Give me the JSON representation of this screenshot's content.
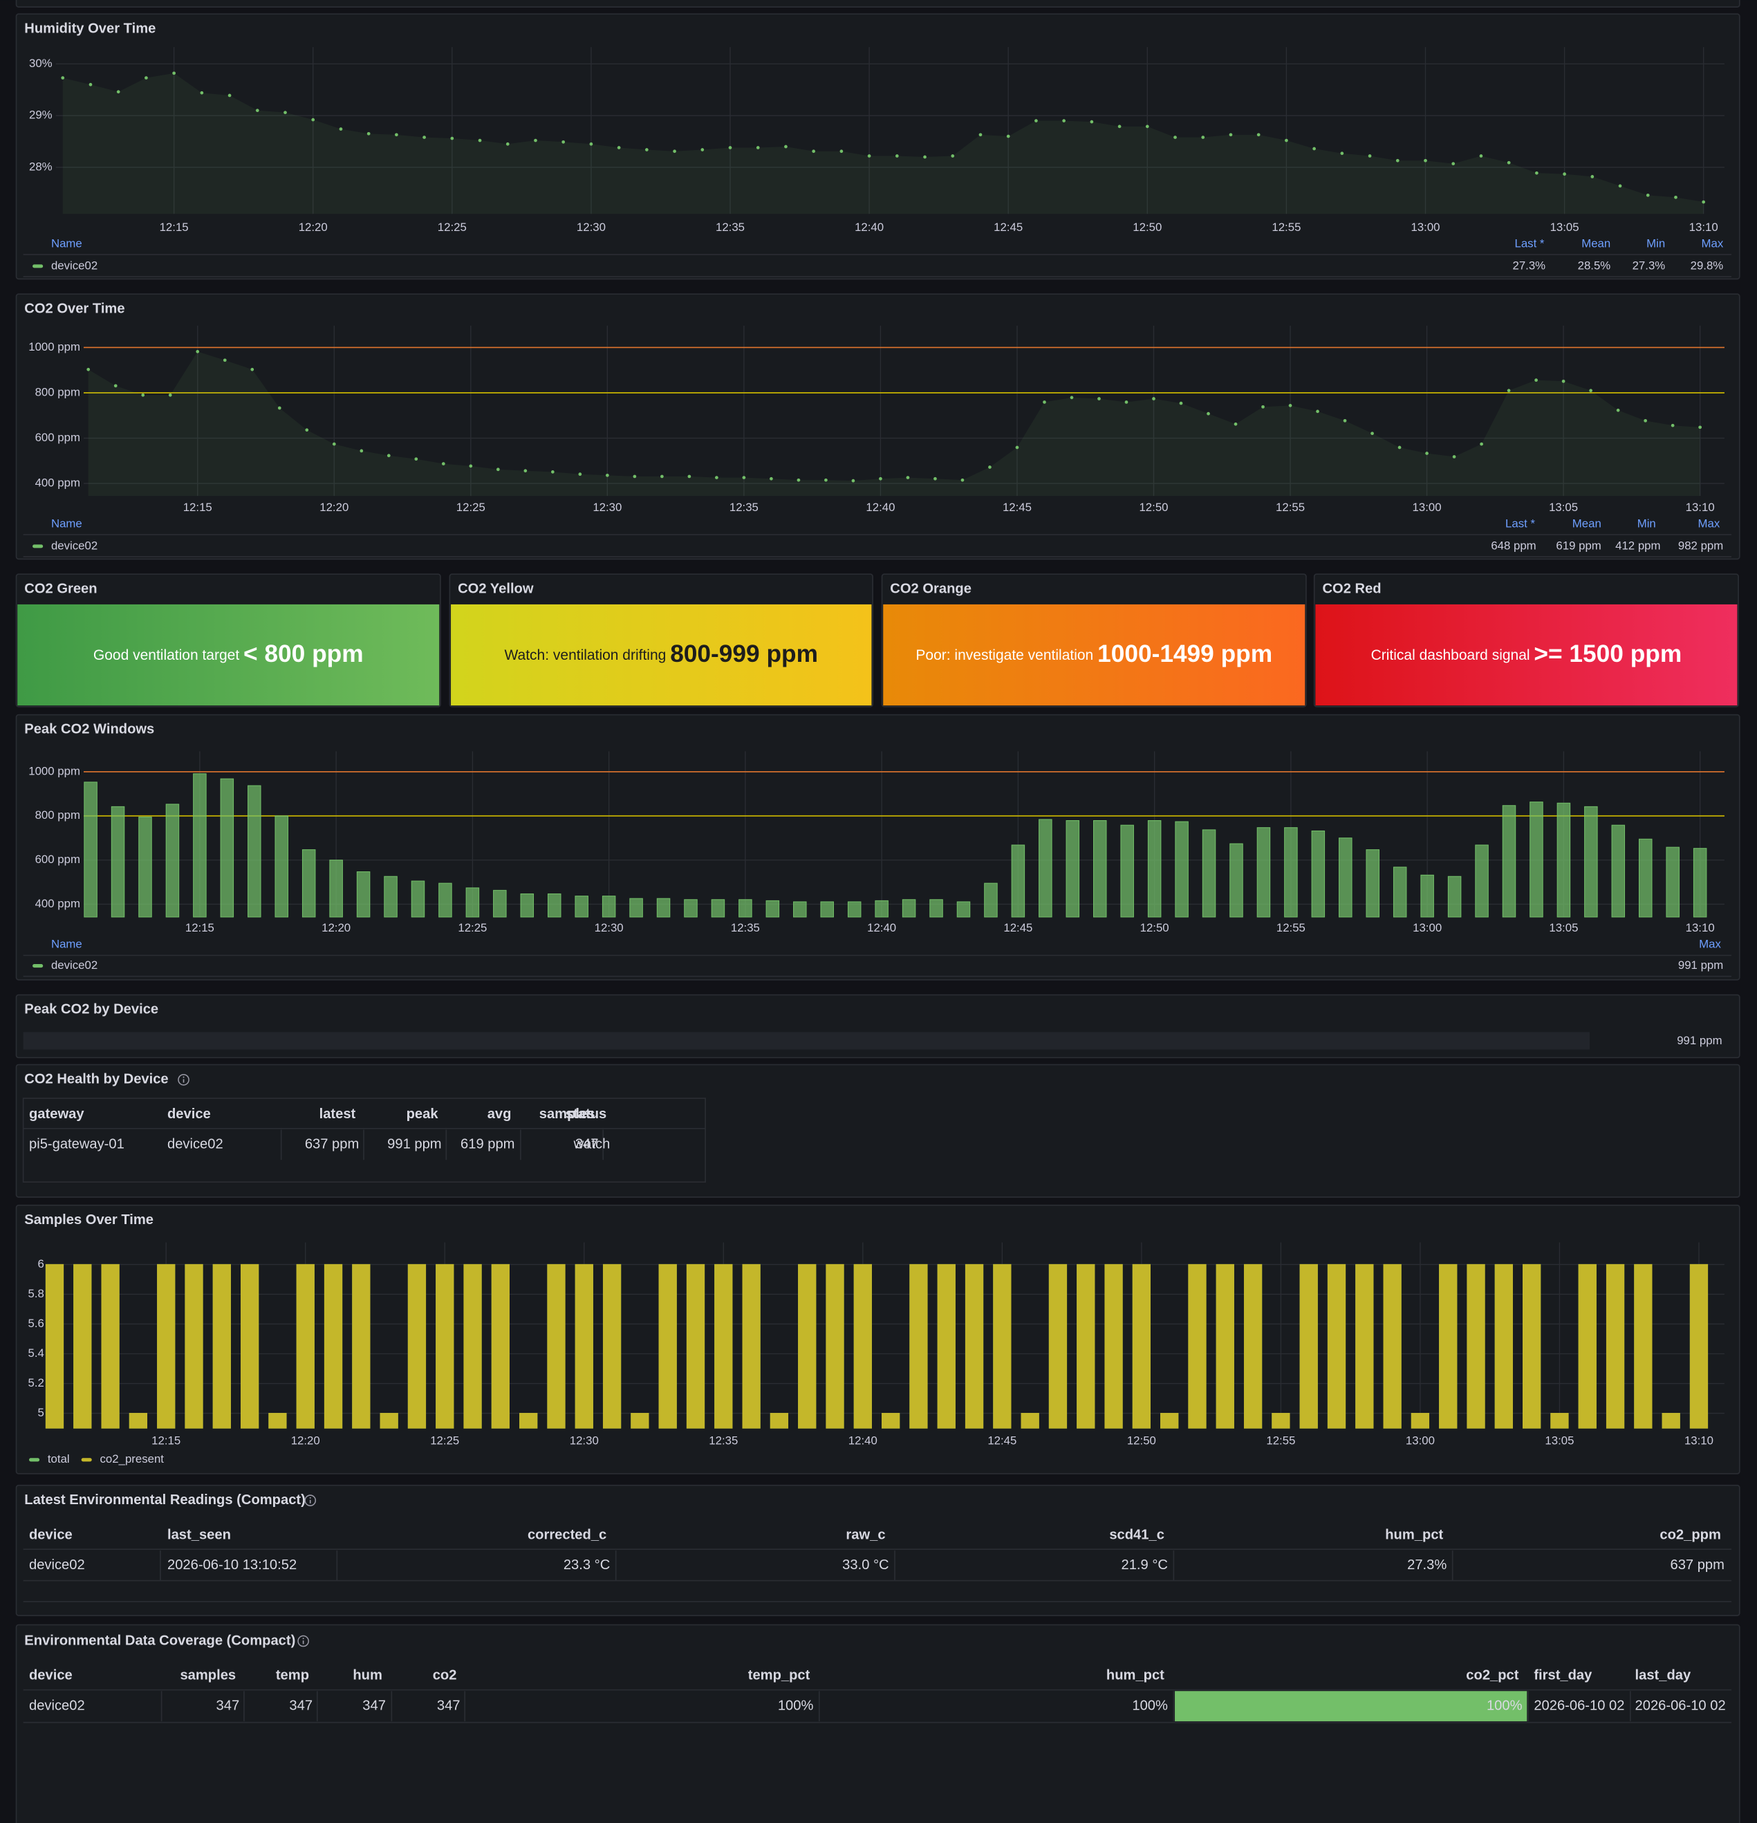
{
  "chart_data": [
    {
      "type": "line",
      "title": "Humidity Over Time",
      "x": [
        "12:11",
        "12:12",
        "12:13",
        "12:14",
        "12:15",
        "12:16",
        "12:17",
        "12:18",
        "12:19",
        "12:20",
        "12:21",
        "12:22",
        "12:23",
        "12:24",
        "12:25",
        "12:26",
        "12:27",
        "12:28",
        "12:29",
        "12:30",
        "12:31",
        "12:32",
        "12:33",
        "12:34",
        "12:35",
        "12:36",
        "12:37",
        "12:38",
        "12:39",
        "12:40",
        "12:41",
        "12:42",
        "12:43",
        "12:44",
        "12:45",
        "12:46",
        "12:47",
        "12:48",
        "12:49",
        "12:50",
        "12:51",
        "12:52",
        "12:53",
        "12:54",
        "12:55",
        "12:56",
        "12:57",
        "12:58",
        "12:59",
        "13:00",
        "13:01",
        "13:02",
        "13:03",
        "13:04",
        "13:05",
        "13:06",
        "13:07",
        "13:08",
        "13:09",
        "13:10"
      ],
      "series": [
        {
          "name": "device02",
          "color": "#73bf69",
          "values": [
            29.73,
            29.6,
            29.46,
            29.73,
            29.82,
            29.44,
            29.39,
            29.1,
            29.06,
            28.92,
            28.74,
            28.65,
            28.63,
            28.58,
            28.56,
            28.52,
            28.45,
            28.52,
            28.49,
            28.45,
            28.38,
            28.34,
            28.31,
            28.34,
            28.38,
            28.38,
            28.4,
            28.31,
            28.31,
            28.22,
            28.22,
            28.2,
            28.22,
            28.63,
            28.6,
            28.9,
            28.9,
            28.88,
            28.79,
            28.79,
            28.58,
            28.58,
            28.63,
            28.63,
            28.52,
            28.36,
            28.27,
            28.22,
            28.13,
            28.13,
            28.07,
            28.22,
            28.09,
            27.89,
            27.87,
            27.82,
            27.64,
            27.46,
            27.42,
            27.33
          ]
        }
      ],
      "ylim": [
        27.1,
        30.1
      ],
      "yticks": [
        {
          "value": 28,
          "label": "28%"
        },
        {
          "value": 29,
          "label": "29%"
        },
        {
          "value": 30,
          "label": "30%"
        }
      ],
      "xticks": [
        "12:15",
        "12:20",
        "12:25",
        "12:30",
        "12:35",
        "12:40",
        "12:45",
        "12:50",
        "12:55",
        "13:00",
        "13:05",
        "13:10"
      ],
      "grid": true,
      "legend": {
        "header": "Name",
        "stat_names": [
          "Last *",
          "Mean",
          "Min",
          "Max"
        ],
        "stat_values": [
          "27.3%",
          "28.5%",
          "27.3%",
          "29.8%"
        ]
      }
    },
    {
      "type": "line",
      "title": "CO2 Over Time",
      "x": [
        "12:11",
        "12:12",
        "12:13",
        "12:14",
        "12:15",
        "12:16",
        "12:17",
        "12:18",
        "12:19",
        "12:20",
        "12:21",
        "12:22",
        "12:23",
        "12:24",
        "12:25",
        "12:26",
        "12:27",
        "12:28",
        "12:29",
        "12:30",
        "12:31",
        "12:32",
        "12:33",
        "12:34",
        "12:35",
        "12:36",
        "12:37",
        "12:38",
        "12:39",
        "12:40",
        "12:41",
        "12:42",
        "12:43",
        "12:44",
        "12:45",
        "12:46",
        "12:47",
        "12:48",
        "12:49",
        "12:50",
        "12:51",
        "12:52",
        "12:53",
        "12:54",
        "12:55",
        "12:56",
        "12:57",
        "12:58",
        "12:59",
        "13:00",
        "13:01",
        "13:02",
        "13:03",
        "13:04",
        "13:05",
        "13:06",
        "13:07",
        "13:08",
        "13:09",
        "13:10"
      ],
      "series": [
        {
          "name": "device02",
          "color": "#73bf69",
          "values": [
            903,
            831,
            790,
            790,
            982,
            944,
            903,
            733,
            636,
            574,
            544,
            523,
            508,
            487,
            477,
            462,
            456,
            451,
            441,
            436,
            431,
            431,
            431,
            426,
            426,
            421,
            415,
            415,
            412,
            421,
            426,
            421,
            415,
            472,
            559,
            759,
            779,
            774,
            759,
            774,
            754,
            708,
            662,
            738,
            744,
            718,
            677,
            621,
            559,
            533,
            518,
            574,
            810,
            856,
            851,
            810,
            723,
            677,
            656,
            648
          ]
        }
      ],
      "ylim": [
        345,
        1045
      ],
      "yticks": [
        {
          "value": 400,
          "label": "400 ppm"
        },
        {
          "value": 600,
          "label": "600 ppm"
        },
        {
          "value": 800,
          "label": "800 ppm"
        },
        {
          "value": 1000,
          "label": "1000 ppm"
        }
      ],
      "xticks": [
        "12:15",
        "12:20",
        "12:25",
        "12:30",
        "12:35",
        "12:40",
        "12:45",
        "12:50",
        "12:55",
        "13:00",
        "13:05",
        "13:10"
      ],
      "grid": true,
      "thresholds": [
        {
          "value": 800,
          "color": "#c8b400"
        },
        {
          "value": 1000,
          "color": "#e0752d"
        }
      ],
      "legend": {
        "header": "Name",
        "stat_names": [
          "Last *",
          "Mean",
          "Min",
          "Max"
        ],
        "stat_values": [
          "648 ppm",
          "619 ppm",
          "412 ppm",
          "982 ppm"
        ]
      }
    },
    {
      "type": "bar",
      "title": "Peak CO2 Windows",
      "x": [
        "12:11",
        "12:12",
        "12:13",
        "12:14",
        "12:15",
        "12:16",
        "12:17",
        "12:18",
        "12:19",
        "12:20",
        "12:21",
        "12:22",
        "12:23",
        "12:24",
        "12:25",
        "12:26",
        "12:27",
        "12:28",
        "12:29",
        "12:30",
        "12:31",
        "12:32",
        "12:33",
        "12:34",
        "12:35",
        "12:36",
        "12:37",
        "12:38",
        "12:39",
        "12:40",
        "12:41",
        "12:42",
        "12:43",
        "12:44",
        "12:45",
        "12:46",
        "12:47",
        "12:48",
        "12:49",
        "12:50",
        "12:51",
        "12:52",
        "12:53",
        "12:54",
        "12:55",
        "12:56",
        "12:57",
        "12:58",
        "12:59",
        "13:00",
        "13:01",
        "13:02",
        "13:03",
        "13:04",
        "13:05",
        "13:06",
        "13:07",
        "13:08",
        "13:09",
        "13:10"
      ],
      "series": [
        {
          "name": "device02",
          "color": "#73bf69",
          "values": [
            953,
            842,
            795,
            853,
            991,
            968,
            937,
            800,
            647,
            600,
            547,
            526,
            505,
            495,
            474,
            463,
            447,
            447,
            437,
            437,
            426,
            426,
            421,
            421,
            421,
            416,
            411,
            411,
            411,
            416,
            421,
            421,
            411,
            495,
            668,
            784,
            779,
            779,
            758,
            779,
            774,
            737,
            674,
            747,
            747,
            732,
            700,
            647,
            568,
            532,
            526,
            668,
            847,
            863,
            858,
            842,
            758,
            695,
            658,
            653
          ]
        }
      ],
      "ylim": [
        342,
        1040
      ],
      "yticks": [
        {
          "value": 400,
          "label": "400 ppm"
        },
        {
          "value": 600,
          "label": "600 ppm"
        },
        {
          "value": 800,
          "label": "800 ppm"
        },
        {
          "value": 1000,
          "label": "1000 ppm"
        }
      ],
      "xticks": [
        "12:15",
        "12:20",
        "12:25",
        "12:30",
        "12:35",
        "12:40",
        "12:45",
        "12:50",
        "12:55",
        "13:00",
        "13:05",
        "13:10"
      ],
      "grid": true,
      "thresholds": [
        {
          "value": 800,
          "color": "#c8b400"
        },
        {
          "value": 1000,
          "color": "#e0752d"
        }
      ],
      "legend": {
        "header": "Name",
        "stat_names": [
          "Max"
        ],
        "stat_values": [
          "991 ppm"
        ]
      }
    },
    {
      "type": "bar",
      "title": "Samples Over Time",
      "x": [
        "12:11",
        "12:12",
        "12:13",
        "12:14",
        "12:15",
        "12:16",
        "12:17",
        "12:18",
        "12:19",
        "12:20",
        "12:21",
        "12:22",
        "12:23",
        "12:24",
        "12:25",
        "12:26",
        "12:27",
        "12:28",
        "12:29",
        "12:30",
        "12:31",
        "12:32",
        "12:33",
        "12:34",
        "12:35",
        "12:36",
        "12:37",
        "12:38",
        "12:39",
        "12:40",
        "12:41",
        "12:42",
        "12:43",
        "12:44",
        "12:45",
        "12:46",
        "12:47",
        "12:48",
        "12:49",
        "12:50",
        "12:51",
        "12:52",
        "12:53",
        "12:54",
        "12:55",
        "12:56",
        "12:57",
        "12:58",
        "12:59",
        "13:00",
        "13:01",
        "13:02",
        "13:03",
        "13:04",
        "13:05",
        "13:06",
        "13:07",
        "13:08",
        "13:09",
        "13:10"
      ],
      "series": [
        {
          "name": "total",
          "color": "#73bf69",
          "values": [
            6,
            6,
            6,
            5,
            6,
            6,
            6,
            6,
            5,
            6,
            6,
            6,
            5,
            6,
            6,
            6,
            6,
            5,
            6,
            6,
            6,
            5,
            6,
            6,
            6,
            6,
            5,
            6,
            6,
            6,
            5,
            6,
            6,
            6,
            6,
            5,
            6,
            6,
            6,
            6,
            5,
            6,
            6,
            6,
            5,
            6,
            6,
            6,
            6,
            5,
            6,
            6,
            6,
            6,
            5,
            6,
            6,
            6,
            5,
            6
          ]
        },
        {
          "name": "co2_present",
          "color": "#c4b72a",
          "values": [
            6,
            6,
            6,
            5,
            6,
            6,
            6,
            6,
            5,
            6,
            6,
            6,
            5,
            6,
            6,
            6,
            6,
            5,
            6,
            6,
            6,
            5,
            6,
            6,
            6,
            6,
            5,
            6,
            6,
            6,
            5,
            6,
            6,
            6,
            6,
            5,
            6,
            6,
            6,
            6,
            5,
            6,
            6,
            6,
            5,
            6,
            6,
            6,
            6,
            5,
            6,
            6,
            6,
            6,
            5,
            6,
            6,
            6,
            5,
            6
          ]
        }
      ],
      "ylim": [
        4.9,
        6.07
      ],
      "yticks": [
        5,
        5.2,
        5.4,
        5.6,
        5.8,
        6
      ],
      "xticks": [
        "12:15",
        "12:20",
        "12:25",
        "12:30",
        "12:35",
        "12:40",
        "12:45",
        "12:50",
        "12:55",
        "13:00",
        "13:05",
        "13:10"
      ],
      "grid": true,
      "legend": {}
    }
  ],
  "stat_panels": [
    {
      "title": "CO2 Green",
      "text": "Good ventilation target",
      "value": "< 800 ppm",
      "colors": [
        "#3f9a45",
        "#6fbb5a"
      ],
      "text_color": "#ffffff"
    },
    {
      "title": "CO2 Yellow",
      "text": "Watch: ventilation drifting",
      "value": "800-999 ppm",
      "colors": [
        "#d2d41c",
        "#f4c21a"
      ],
      "text_color": "#1d1d1d"
    },
    {
      "title": "CO2 Orange",
      "text": "Poor: investigate ventilation",
      "value": "1000-1499 ppm",
      "colors": [
        "#e88a08",
        "#fb6820"
      ],
      "text_color": "#ffffff"
    },
    {
      "title": "CO2 Red",
      "text": "Critical dashboard signal",
      "value": ">= 1500 ppm",
      "colors": [
        "#dd1318",
        "#ef2e5e"
      ],
      "text_color": "#ffffff"
    }
  ],
  "peak_by_device": {
    "title": "Peak CO2 by Device",
    "value": "991 ppm",
    "color": "#f2cc0c"
  },
  "health_table": {
    "title": "CO2 Health by Device",
    "columns": [
      "gateway",
      "device",
      "latest",
      "peak",
      "avg",
      "samples",
      "status"
    ],
    "rows": [
      [
        "pi5-gateway-01",
        "device02",
        "637 ppm",
        "991 ppm",
        "619 ppm",
        "347",
        "watch"
      ]
    ]
  },
  "latest_table": {
    "title": "Latest Environmental Readings (Compact)",
    "columns": [
      "device",
      "last_seen",
      "corrected_c",
      "raw_c",
      "scd41_c",
      "hum_pct",
      "co2_ppm"
    ],
    "rows": [
      [
        "device02",
        "2026-06-10 13:10:52",
        "23.3 °C",
        "33.0 °C",
        "21.9 °C",
        "27.3%",
        "637 ppm"
      ]
    ]
  },
  "coverage_table": {
    "title": "Environmental Data Coverage (Compact)",
    "columns": [
      "device",
      "samples",
      "temp",
      "hum",
      "co2",
      "temp_pct",
      "hum_pct",
      "co2_pct",
      "first_day",
      "last_day"
    ],
    "rows": [
      [
        "device02",
        "347",
        "347",
        "347",
        "347",
        "100%",
        "100%",
        "100%",
        "2026-06-10 02",
        "2026-06-10 02"
      ]
    ],
    "highlight_color": "#73bf69"
  }
}
